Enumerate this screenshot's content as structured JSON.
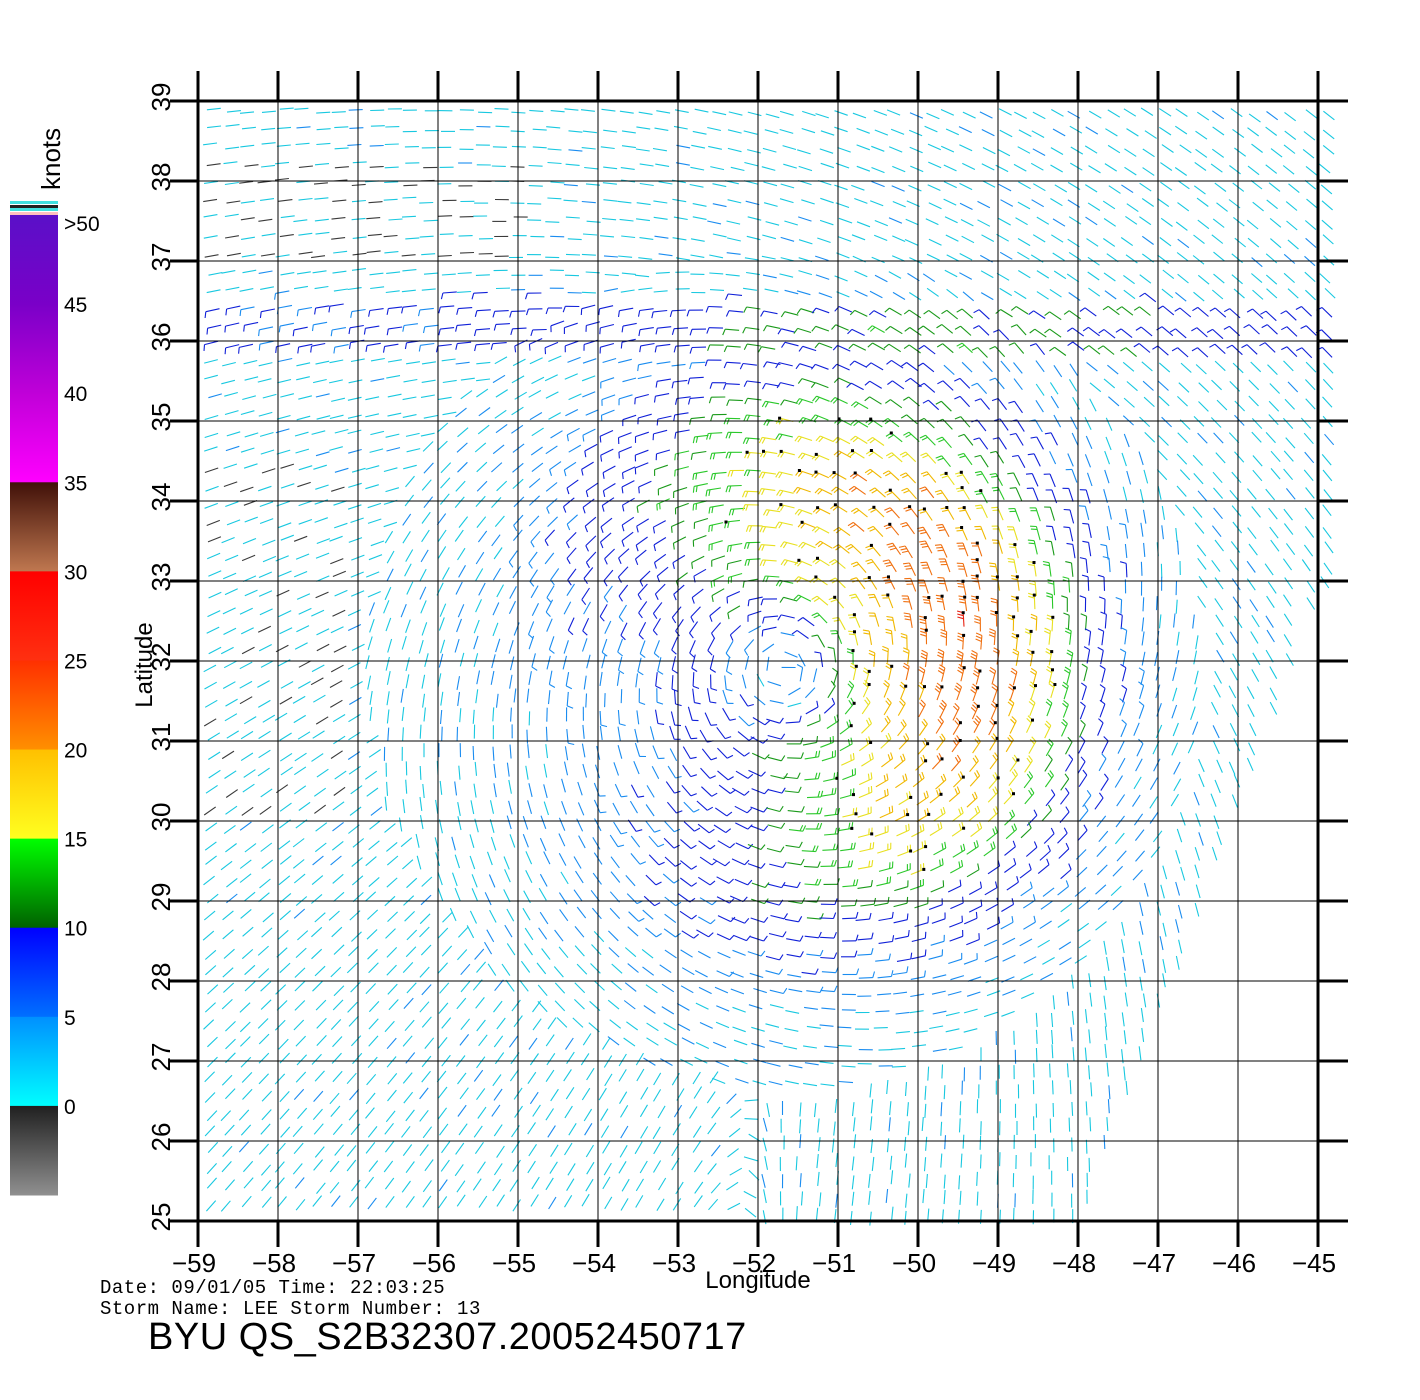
{
  "legend": {
    "unit": "knots",
    "labels": [
      ">50",
      "45",
      "40",
      "35",
      "30",
      "25",
      "20",
      "15",
      "10",
      "5",
      "0"
    ],
    "bands": [
      {
        "from": 50,
        "to": 55,
        "top": "#5a10c8",
        "bottom": "#7a00c8"
      },
      {
        "from": 45,
        "to": 50,
        "top": "#7a00c8",
        "bottom": "#c000d8"
      },
      {
        "from": 40,
        "to": 45,
        "top": "#c000d8",
        "bottom": "#ff00ff"
      },
      {
        "from": 35,
        "to": 40,
        "top": "#401008",
        "bottom": "#c07850"
      },
      {
        "from": 30,
        "to": 35,
        "top": "#ff0000",
        "bottom": "#ff3010"
      },
      {
        "from": 25,
        "to": 30,
        "top": "#ff3000",
        "bottom": "#ff9000"
      },
      {
        "from": 20,
        "to": 25,
        "top": "#ffc000",
        "bottom": "#ffff20"
      },
      {
        "from": 15,
        "to": 20,
        "top": "#00ff00",
        "bottom": "#006000"
      },
      {
        "from": 10,
        "to": 15,
        "top": "#0000ff",
        "bottom": "#0070ff"
      },
      {
        "from": 5,
        "to": 10,
        "top": "#0090ff",
        "bottom": "#00ffff"
      },
      {
        "from": 0,
        "to": 5,
        "top": "#202020",
        "bottom": "#909090"
      }
    ]
  },
  "axes": {
    "xlabel": "Longitude",
    "ylabel": "Latitude",
    "lon_range": [
      -59,
      -45
    ],
    "lat_range": [
      25,
      39
    ],
    "lon_ticks": [
      "−59",
      "−58",
      "−57",
      "−56",
      "−55",
      "−54",
      "−53",
      "−52",
      "−51",
      "−50",
      "−49",
      "−48",
      "−47",
      "−46",
      "−45"
    ],
    "lat_ticks": [
      "25",
      "26",
      "27",
      "28",
      "29",
      "30",
      "31",
      "32",
      "33",
      "34",
      "35",
      "36",
      "37",
      "38",
      "39"
    ],
    "grid": true
  },
  "storm": {
    "center_lon": -51.7,
    "center_lat": 31.9,
    "swath_east_edge": "diagonal from (-48, 25) to (-45, 33)"
  },
  "footer": {
    "line1": "Date: 09/01/05  Time: 22:03:25",
    "line2": "Storm Name: LEE   Storm Number: 13",
    "line3": "BYU  QS_S2B32307.20052450717"
  }
}
